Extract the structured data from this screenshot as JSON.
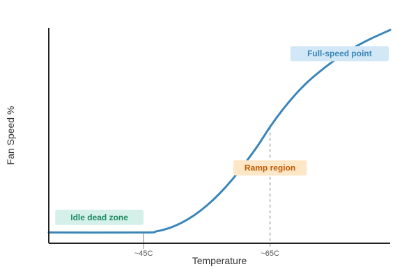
{
  "chart_data": {
    "type": "line",
    "title": "",
    "xlabel": "Temperature",
    "ylabel": "Fan Speed %",
    "x_ticks": [
      {
        "value": 45,
        "label": "~45C"
      },
      {
        "value": 65,
        "label": "~65C"
      }
    ],
    "xlim": [
      30,
      84
    ],
    "ylim": [
      0,
      100
    ],
    "grid": false,
    "legend": "none",
    "series": [
      {
        "color": "#3a86b9",
        "points": [
          [
            30,
            5
          ],
          [
            45,
            5
          ],
          [
            47,
            5.5
          ],
          [
            49,
            7
          ],
          [
            51,
            9.5
          ],
          [
            53,
            13
          ],
          [
            55,
            17.5
          ],
          [
            57,
            23
          ],
          [
            59,
            29.5
          ],
          [
            61,
            37
          ],
          [
            63,
            45
          ],
          [
            65,
            54
          ],
          [
            67,
            62
          ],
          [
            69,
            69
          ],
          [
            71,
            75
          ],
          [
            73,
            80
          ],
          [
            75,
            84.5
          ],
          [
            77,
            88.5
          ],
          [
            79,
            92
          ],
          [
            81,
            95
          ],
          [
            84,
            99
          ]
        ]
      }
    ],
    "reference_lines": [
      {
        "x": 45,
        "y_top": 5,
        "style": "solid",
        "color": "#aaaaaa"
      },
      {
        "x": 65,
        "y_top": 54,
        "style": "dashed",
        "color": "#aaaaaa"
      }
    ],
    "annotations": [
      {
        "text": "Idle dead zone",
        "x": 38,
        "y": 12,
        "bg": "#d5f0e8",
        "fg": "#1f8a64"
      },
      {
        "text": "Ramp region",
        "x": 65,
        "y": 35,
        "bg": "#fde7c6",
        "fg": "#c05a00"
      },
      {
        "text": "Full-speed point",
        "x": 76,
        "y": 88,
        "bg": "#d2e8f7",
        "fg": "#3a86b9"
      }
    ]
  }
}
